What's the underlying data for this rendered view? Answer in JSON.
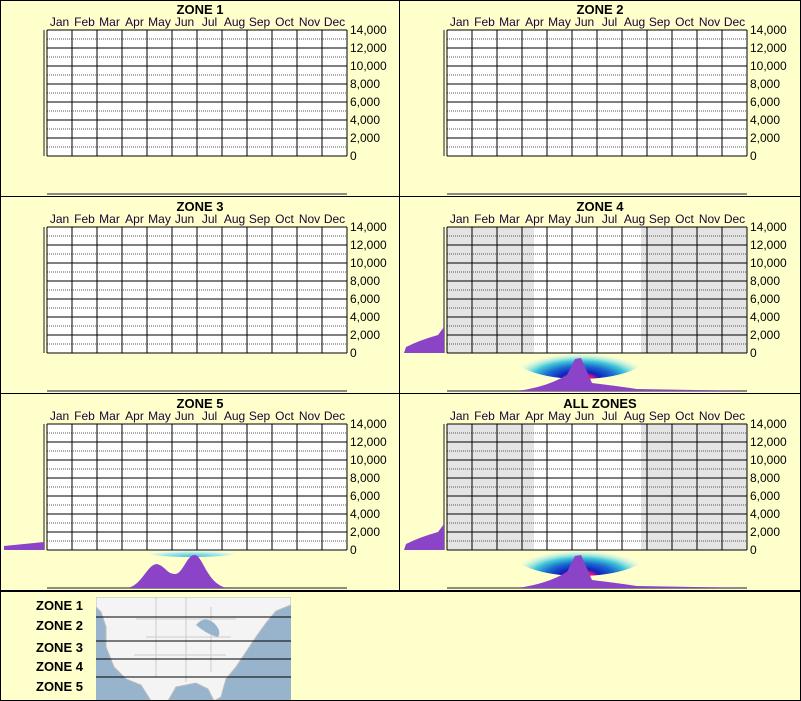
{
  "months": [
    "Jan",
    "Feb",
    "Mar",
    "Apr",
    "May",
    "Jun",
    "Jul",
    "Aug",
    "Sep",
    "Oct",
    "Nov",
    "Dec"
  ],
  "y_ticks": [
    "14,000",
    "12,000",
    "10,000",
    "8,000",
    "6,000",
    "4,000",
    "2,000",
    "0"
  ],
  "panels": [
    {
      "title": "ZONE 1",
      "has_data": false
    },
    {
      "title": "ZONE 2",
      "has_data": false
    },
    {
      "title": "ZONE 3",
      "has_data": false
    },
    {
      "title": "ZONE 4",
      "has_data": true,
      "shaded_outside_season": true
    },
    {
      "title": "ZONE 5",
      "has_data": true,
      "shaded_outside_season": false
    },
    {
      "title": "ALL ZONES",
      "has_data": true,
      "shaded_outside_season": true
    }
  ],
  "legend": {
    "zones": [
      "ZONE 1",
      "ZONE 2",
      "ZONE 3",
      "ZONE 4",
      "ZONE 5"
    ]
  },
  "colors": {
    "background": "#ffffcc",
    "marginal": "#8b44c8",
    "hot_core": "#e0107a",
    "mid": "#1020c0",
    "low": "#40c8d8",
    "shade": "#e4e4e4"
  },
  "chart_data": {
    "type": "heatmap",
    "categories": [
      "Jan",
      "Feb",
      "Mar",
      "Apr",
      "May",
      "Jun",
      "Jul",
      "Aug",
      "Sep",
      "Oct",
      "Nov",
      "Dec"
    ],
    "ylim": [
      0,
      14000
    ],
    "grid": true,
    "series": [
      {
        "name": "ZONE 4",
        "peak_month": "Jun",
        "peak_y_range": [
          0,
          2000
        ]
      },
      {
        "name": "ZONE 5",
        "peak_months": [
          "May",
          "Jul"
        ],
        "peak_y_range": [
          0,
          500
        ]
      },
      {
        "name": "ALL ZONES",
        "peak_month": "Jun",
        "peak_y_range": [
          0,
          2000
        ]
      }
    ]
  }
}
